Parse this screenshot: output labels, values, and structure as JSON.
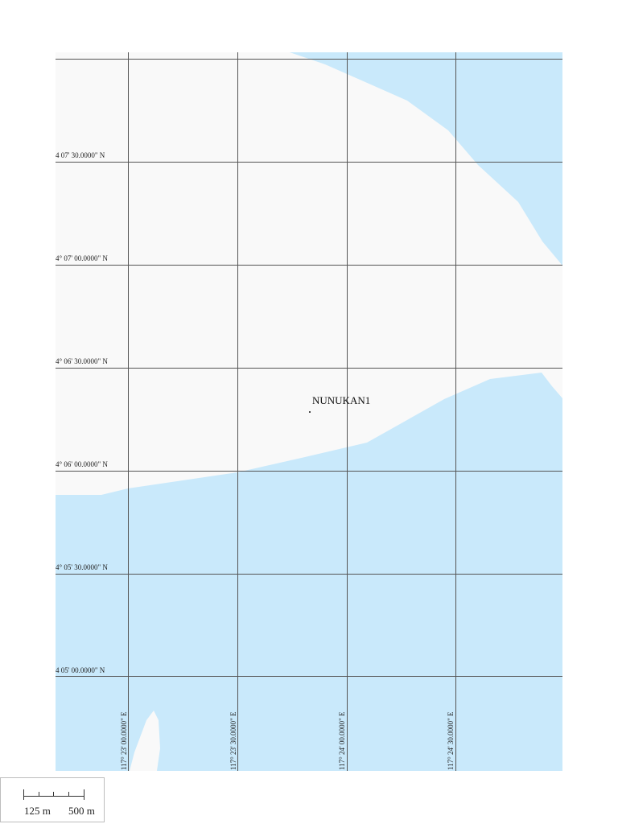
{
  "colors": {
    "land": "#f9f9f9",
    "water": "#c9e9fb",
    "grid": "#555555"
  },
  "latitude_labels": [
    "4 07' 30.0000\" N",
    "4° 07' 00.0000\" N",
    "4° 06' 30.0000\" N",
    "4° 06' 00.0000\" N",
    "4° 05' 30.0000\" N",
    "4 05' 00.0000\" N"
  ],
  "longitude_labels": [
    "117° 23' 00.0000\" E",
    "117° 23' 30.0000\" E",
    "117° 24' 00.0000\" E",
    "117° 24' 30.0000\" E"
  ],
  "place": {
    "name": "NUNUKAN1"
  },
  "scale": {
    "label_small": "125 m",
    "label_large": "500 m"
  }
}
